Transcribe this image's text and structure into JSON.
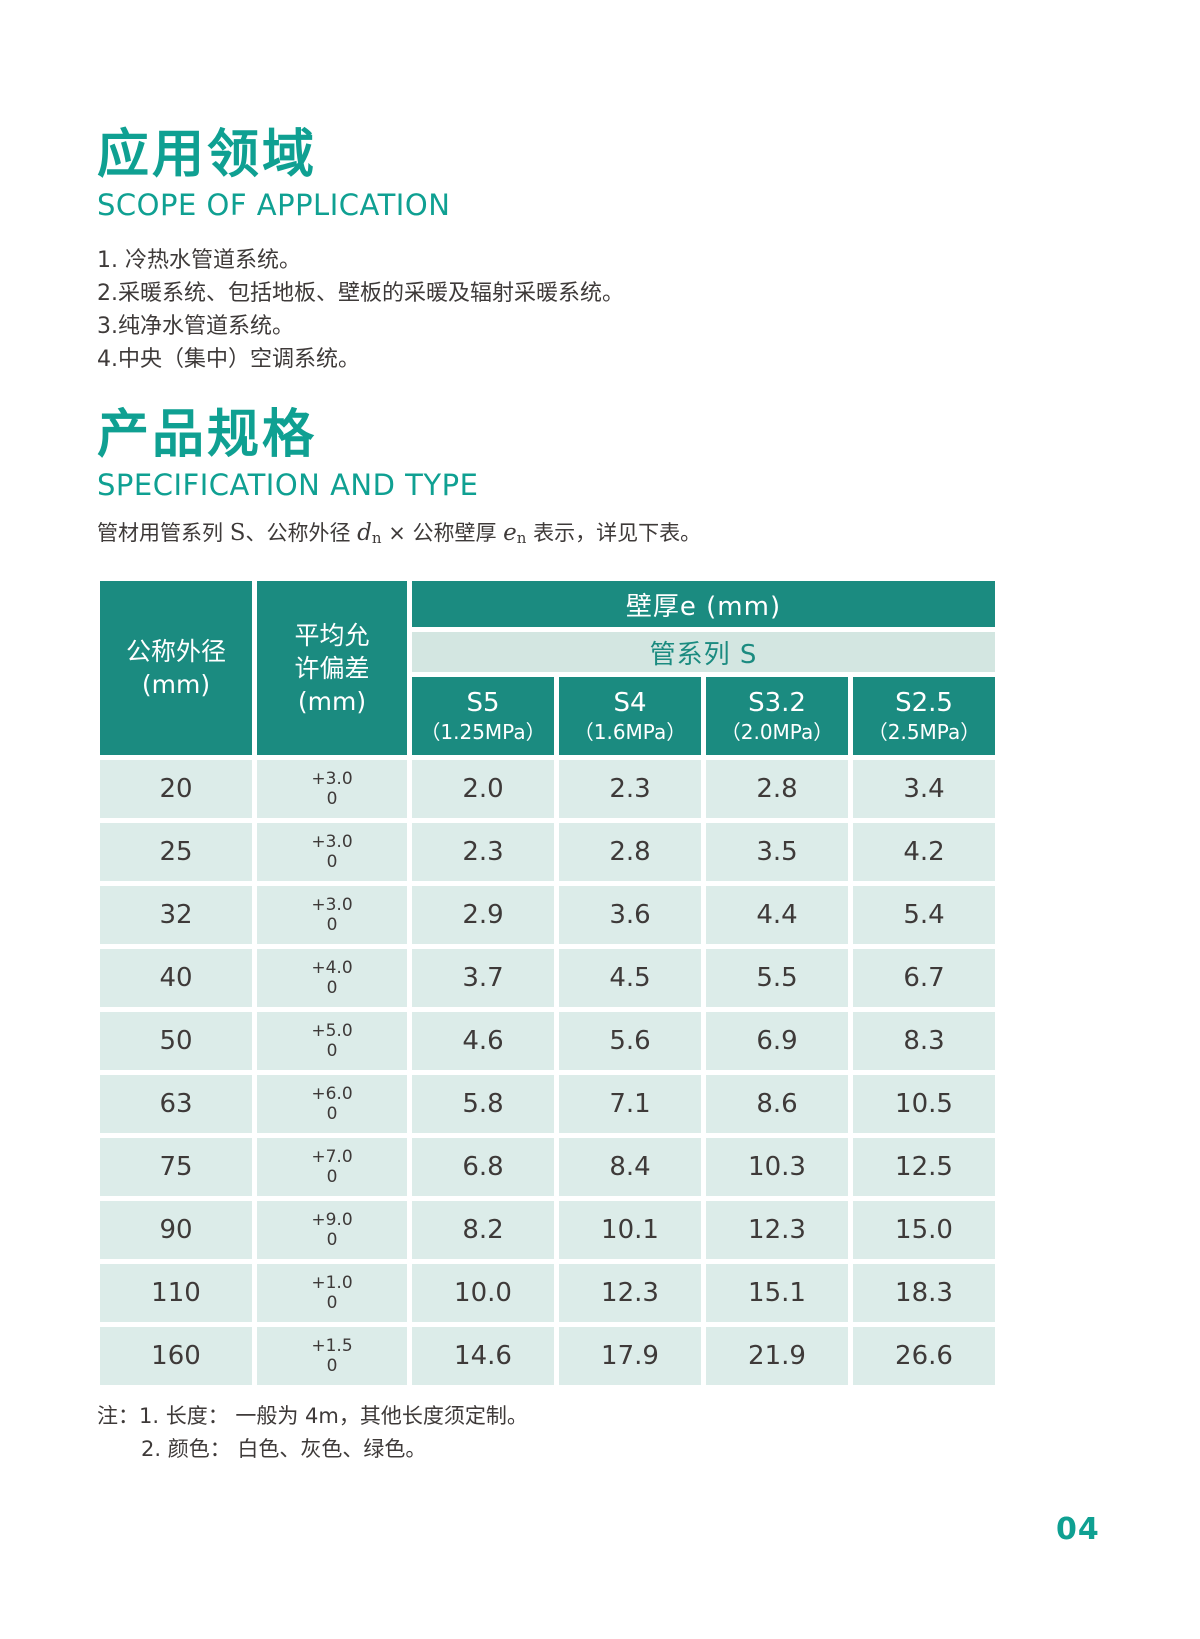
{
  "page": {
    "number": "04"
  },
  "section_application": {
    "title_zh": "应用领域",
    "title_en": "SCOPE OF APPLICATION",
    "items": [
      "1. 冷热水管道系统。",
      "2.采暖系统、包括地板、壁板的采暖及辐射采暖系统。",
      "3.纯净水管道系统。",
      "4.中央（集中）空调系统。"
    ]
  },
  "section_specification": {
    "title_zh": "产品规格",
    "title_en": "SPECIFICATION AND TYPE",
    "description": {
      "part1": "管材用管系列 ",
      "series_symbol": "S",
      "part2": "、公称外径 ",
      "d_symbol": "d",
      "d_sub": "n",
      "part3": " × 公称壁厚 ",
      "e_symbol": "e",
      "e_sub": "n",
      "part4": " 表示，详见下表。"
    }
  },
  "table": {
    "header": {
      "outer_diameter_line1": "公称外径",
      "outer_diameter_line2": "(mm)",
      "tolerance_line1": "平均允",
      "tolerance_line2": "许偏差",
      "tolerance_line3": "(mm)",
      "wall_thickness": "壁厚e (mm)",
      "pipe_series": "管系列 S",
      "series": [
        {
          "name": "S5",
          "pressure": "（1.25MPa）"
        },
        {
          "name": "S4",
          "pressure": "（1.6MPa）"
        },
        {
          "name": "S3.2",
          "pressure": "（2.0MPa）"
        },
        {
          "name": "S2.5",
          "pressure": "（2.5MPa）"
        }
      ]
    },
    "rows": [
      {
        "dn": "20",
        "tol_plus": "+3.0",
        "tol_zero": "0",
        "values": [
          "2.0",
          "2.3",
          "2.8",
          "3.4"
        ]
      },
      {
        "dn": "25",
        "tol_plus": "+3.0",
        "tol_zero": "0",
        "values": [
          "2.3",
          "2.8",
          "3.5",
          "4.2"
        ]
      },
      {
        "dn": "32",
        "tol_plus": "+3.0",
        "tol_zero": "0",
        "values": [
          "2.9",
          "3.6",
          "4.4",
          "5.4"
        ]
      },
      {
        "dn": "40",
        "tol_plus": "+4.0",
        "tol_zero": "0",
        "values": [
          "3.7",
          "4.5",
          "5.5",
          "6.7"
        ]
      },
      {
        "dn": "50",
        "tol_plus": "+5.0",
        "tol_zero": "0",
        "values": [
          "4.6",
          "5.6",
          "6.9",
          "8.3"
        ]
      },
      {
        "dn": "63",
        "tol_plus": "+6.0",
        "tol_zero": "0",
        "values": [
          "5.8",
          "7.1",
          "8.6",
          "10.5"
        ]
      },
      {
        "dn": "75",
        "tol_plus": "+7.0",
        "tol_zero": "0",
        "values": [
          "6.8",
          "8.4",
          "10.3",
          "12.5"
        ]
      },
      {
        "dn": "90",
        "tol_plus": "+9.0",
        "tol_zero": "0",
        "values": [
          "8.2",
          "10.1",
          "12.3",
          "15.0"
        ]
      },
      {
        "dn": "110",
        "tol_plus": "+1.0",
        "tol_zero": "0",
        "values": [
          "10.0",
          "12.3",
          "15.1",
          "18.3"
        ]
      },
      {
        "dn": "160",
        "tol_plus": "+1.5",
        "tol_zero": "0",
        "values": [
          "14.6",
          "17.9",
          "21.9",
          "26.6"
        ]
      }
    ]
  },
  "notes": {
    "prefix": "注：",
    "items": [
      "1. 长度： 一般为 4m，其他长度须定制。",
      "2. 颜色： 白色、灰色、绿色。"
    ]
  },
  "colors": {
    "accent": "#0FA092",
    "table_header_bg": "#1B8B80",
    "band_bg": "#D3E6E1",
    "row_bg": "#DCECE9",
    "text": "#3E3A39"
  }
}
